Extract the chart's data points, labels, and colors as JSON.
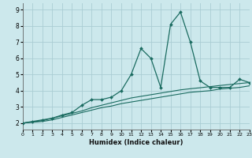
{
  "xlabel": "Humidex (Indice chaleur)",
  "bg_color": "#cce8ec",
  "grid_color": "#aacdd4",
  "line_color": "#1a6b60",
  "x_values": [
    0,
    1,
    2,
    3,
    4,
    5,
    6,
    7,
    8,
    9,
    10,
    11,
    12,
    13,
    14,
    15,
    16,
    17,
    18,
    19,
    20,
    21,
    22,
    23
  ],
  "line1_y": [
    2.0,
    2.1,
    2.2,
    2.3,
    2.5,
    2.65,
    3.1,
    3.45,
    3.45,
    3.6,
    4.0,
    5.0,
    6.6,
    6.0,
    4.2,
    8.1,
    8.85,
    7.0,
    4.6,
    4.2,
    4.2,
    4.2,
    4.7,
    4.5
  ],
  "line2_y": [
    2.0,
    2.05,
    2.1,
    2.2,
    2.35,
    2.5,
    2.65,
    2.8,
    2.95,
    3.05,
    3.2,
    3.3,
    3.4,
    3.5,
    3.6,
    3.7,
    3.8,
    3.9,
    3.95,
    4.0,
    4.1,
    4.15,
    4.2,
    4.3
  ],
  "line3_y": [
    2.0,
    2.07,
    2.15,
    2.3,
    2.45,
    2.6,
    2.75,
    2.95,
    3.1,
    3.25,
    3.4,
    3.55,
    3.65,
    3.75,
    3.85,
    3.95,
    4.05,
    4.12,
    4.18,
    4.25,
    4.32,
    4.38,
    4.44,
    4.5
  ],
  "xlim": [
    0,
    23
  ],
  "ylim": [
    1.6,
    9.4
  ],
  "yticks": [
    2,
    3,
    4,
    5,
    6,
    7,
    8,
    9
  ],
  "xticks": [
    0,
    1,
    2,
    3,
    4,
    5,
    6,
    7,
    8,
    9,
    10,
    11,
    12,
    13,
    14,
    15,
    16,
    17,
    18,
    19,
    20,
    21,
    22,
    23
  ]
}
